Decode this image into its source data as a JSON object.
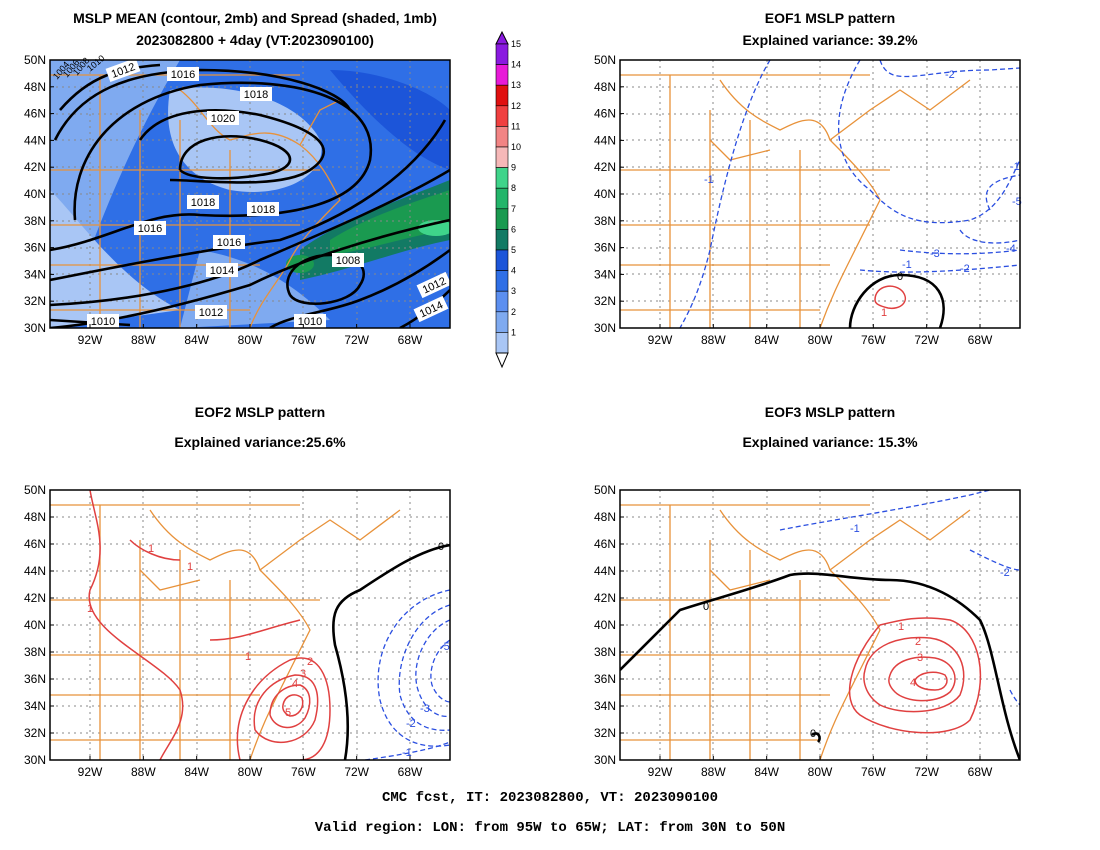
{
  "panels": [
    {
      "title1": "MSLP MEAN (contour, 2mb) and Spread (shaded, 1mb)",
      "title2": "2023082800 + 4day (VT:2023090100)"
    },
    {
      "title1": "EOF1 MSLP pattern",
      "title2": "Explained variance: 39.2%"
    },
    {
      "title1": "EOF2 MSLP pattern",
      "title2": "Explained variance:25.6%"
    },
    {
      "title1": "EOF3 MSLP pattern",
      "title2": "Explained variance: 15.3%"
    }
  ],
  "lat_labels": [
    "50N",
    "48N",
    "46N",
    "44N",
    "42N",
    "40N",
    "38N",
    "36N",
    "34N",
    "32N",
    "30N"
  ],
  "lon_labels": [
    "92W",
    "88W",
    "84W",
    "80W",
    "76W",
    "72W",
    "68W"
  ],
  "colorbar": {
    "levels": [
      "1",
      "2",
      "3",
      "4",
      "5",
      "6",
      "7",
      "8",
      "9",
      "10",
      "11",
      "12",
      "13",
      "14",
      "15"
    ],
    "colors": [
      "#a9c6f5",
      "#7faaf0",
      "#5c8ff0",
      "#2f6fe6",
      "#1c55d9",
      "#127a64",
      "#1a9a50",
      "#23b56a",
      "#3fd48a",
      "#f6b8b8",
      "#f28484",
      "#f04040",
      "#e01010",
      "#e81ad8",
      "#8a1ae0"
    ]
  },
  "mean_contour_labels": [
    "1016",
    "1012",
    "1018",
    "1020",
    "1018",
    "1018",
    "1016",
    "1016",
    "1014",
    "1012",
    "1010",
    "1010",
    "1008",
    "1012",
    "1014",
    "1004",
    "1006",
    "1008",
    "1010"
  ],
  "eof1_labels": [
    "-2",
    "-1",
    "-1",
    "-5",
    "-4",
    "-3",
    "-2",
    "-1",
    "0",
    "1"
  ],
  "eof2_labels": [
    "0",
    "1",
    "1",
    "1",
    "1",
    "2",
    "3",
    "4",
    "5",
    "-5",
    "-3",
    "-2",
    "-1"
  ],
  "eof3_labels": [
    "-1",
    "-2",
    "0",
    "0",
    "1",
    "2",
    "3",
    "4"
  ],
  "footer": {
    "line1": "CMC fcst, IT: 2023082800, VT: 2023090100",
    "line2": "Valid region: LON: from 95W to 65W; LAT: from 30N to 50N"
  }
}
